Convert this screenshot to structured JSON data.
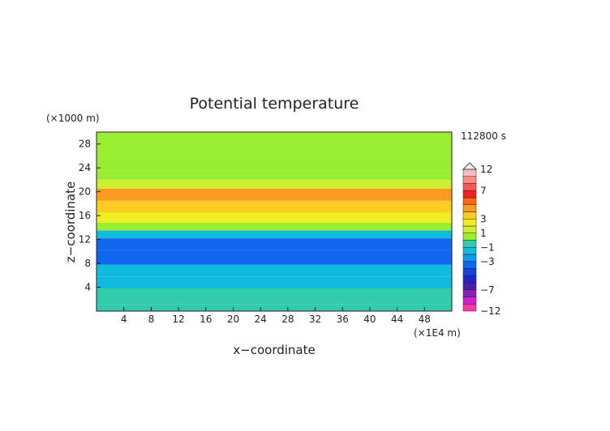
{
  "chart_data": {
    "type": "heatmap",
    "title": "Potential temperature",
    "xlabel": "x−coordinate",
    "ylabel": "z−coordinate",
    "x_unit": "(×1E4 m)",
    "y_unit": "(×1000 m)",
    "time_label": "112800 s",
    "xlim": [
      0,
      52
    ],
    "ylim": [
      0,
      30
    ],
    "x_ticks": [
      "4",
      "8",
      "12",
      "16",
      "20",
      "24",
      "28",
      "32",
      "36",
      "40",
      "44",
      "48"
    ],
    "y_ticks": [
      "4",
      "8",
      "12",
      "16",
      "20",
      "24",
      "28"
    ],
    "x_tick_values": [
      4,
      8,
      12,
      16,
      20,
      24,
      28,
      32,
      36,
      40,
      44,
      48
    ],
    "y_tick_values": [
      4,
      8,
      12,
      16,
      20,
      24,
      28
    ],
    "colorbar": {
      "labels": [
        "12",
        "7",
        "3",
        "1",
        "−1",
        "−3",
        "−7",
        "−12"
      ],
      "label_values": [
        12,
        7,
        3,
        1,
        -1,
        -3,
        -7,
        -12
      ],
      "levels": [
        -12,
        -10,
        -8,
        -7,
        -6,
        -5,
        -4,
        -3,
        -2,
        -1,
        0,
        1,
        2,
        3,
        4,
        5,
        6,
        7,
        8,
        10,
        12
      ],
      "colors": [
        "#ff33aa",
        "#cc22cc",
        "#8822bb",
        "#4422aa",
        "#2222cc",
        "#1144dd",
        "#1166ee",
        "#1199ee",
        "#11bbdd",
        "#33ccaa",
        "#99ee33",
        "#ccee33",
        "#eeee22",
        "#ffcc22",
        "#ff9922",
        "#ff6611",
        "#ee2222",
        "#ff5555",
        "#ff8888",
        "#ffbbbb"
      ]
    },
    "layers": [
      {
        "z_range": [
          0,
          1.2
        ],
        "value": -0.3
      },
      {
        "z_range": [
          1.2,
          3.8
        ],
        "value": -0.6
      },
      {
        "z_range": [
          3.8,
          5.8
        ],
        "value": -1.2
      },
      {
        "z_range": [
          5.8,
          7.8
        ],
        "value": -1.7
      },
      {
        "z_range": [
          7.8,
          10.2
        ],
        "value": -3.3
      },
      {
        "z_range": [
          10.2,
          12.2
        ],
        "value": -3.1
      },
      {
        "z_range": [
          12.2,
          13.5
        ],
        "value": -1.6
      },
      {
        "z_range": [
          13.5,
          14.8
        ],
        "value": 0.2
      },
      {
        "z_range": [
          14.8,
          16.5
        ],
        "value": 2.2
      },
      {
        "z_range": [
          16.5,
          18.5
        ],
        "value": 3.4
      },
      {
        "z_range": [
          18.5,
          20.5
        ],
        "value": 4.3
      },
      {
        "z_range": [
          20.5,
          22.0
        ],
        "value": 1.8
      },
      {
        "z_range": [
          22.0,
          23.5
        ],
        "value": 0.3
      },
      {
        "z_range": [
          23.5,
          26.0
        ],
        "value": 0.5
      },
      {
        "z_range": [
          26.0,
          30.0
        ],
        "value": 0.2
      }
    ]
  }
}
